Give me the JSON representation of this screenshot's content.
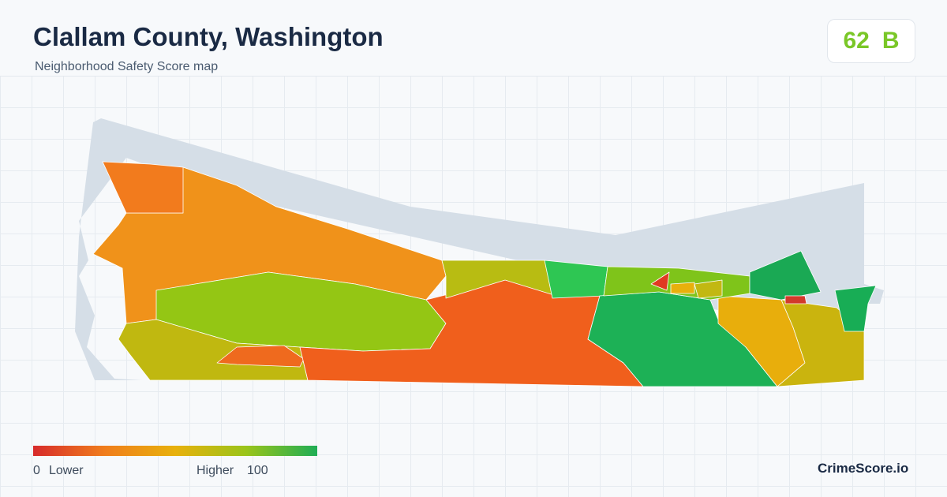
{
  "header": {
    "title": "Clallam County, Washington",
    "subtitle": "Neighborhood Safety Score map"
  },
  "score": {
    "value": "62",
    "grade": "B"
  },
  "legend": {
    "min": "0",
    "min_label": "Lower",
    "max_label": "Higher",
    "max": "100"
  },
  "brand": "CrimeScore.io"
}
